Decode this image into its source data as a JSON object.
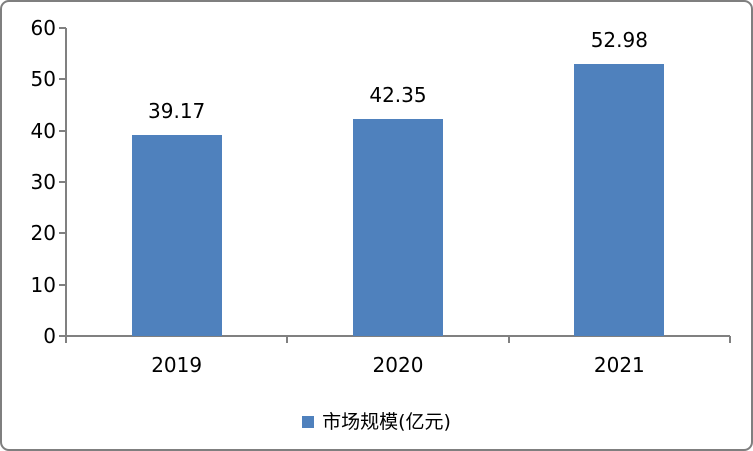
{
  "chart_data": {
    "type": "bar",
    "categories": [
      "2019",
      "2020",
      "2021"
    ],
    "values": [
      39.17,
      42.35,
      52.98
    ],
    "data_labels": [
      "39.17",
      "42.35",
      "52.98"
    ],
    "series_name": "市场规模(亿元)",
    "legend": [
      {
        "label": "市场规模(亿元)",
        "color": "#4F81BD"
      }
    ],
    "legend_position": "bottom",
    "title": "",
    "xlabel": "",
    "ylabel": "",
    "ylim": [
      0,
      60
    ],
    "yticks": [
      0,
      10,
      20,
      30,
      40,
      50,
      60
    ],
    "grid": false,
    "bar_color": "#4F81BD",
    "axis_color": "#808080",
    "text_color": "#000000",
    "frame_border_color": "#7F7F7F"
  }
}
